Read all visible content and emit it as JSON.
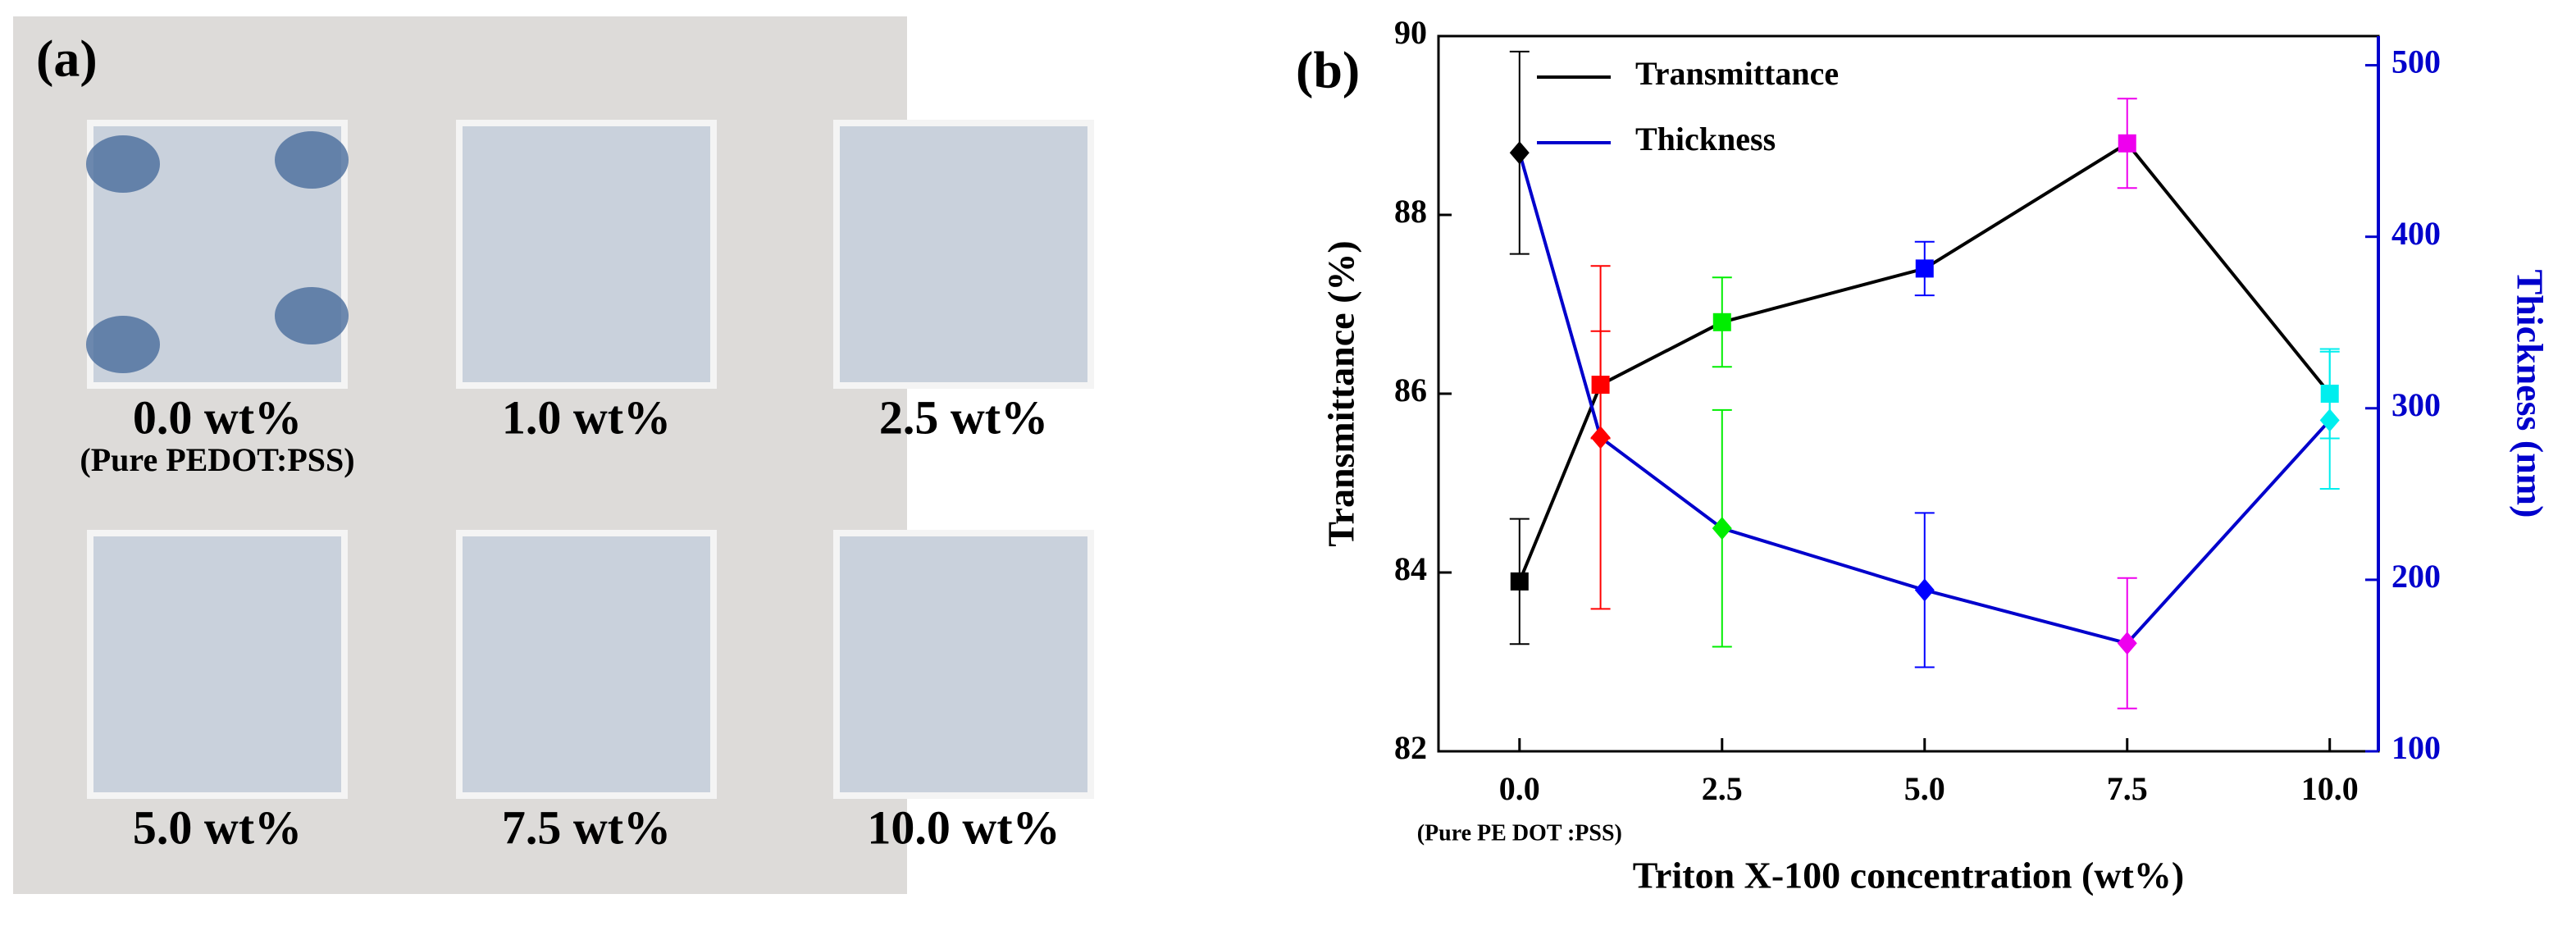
{
  "panel_a": {
    "label": "(a)",
    "samples": [
      "0.0 wt%",
      "1.0 wt%",
      "2.5 wt%",
      "5.0 wt%",
      "7.5 wt%",
      "10.0 wt%"
    ],
    "note": "(Pure PEDOT:PSS)"
  },
  "chart_data": {
    "type": "line",
    "panel_label": "(b)",
    "x_label": "Triton X-100 concentration (wt%)",
    "y_label": "Transmittance (%)",
    "y2_label": "Thickness (nm)",
    "annotation": "(Pure PE DOT :PSS)",
    "x": [
      0,
      1,
      2.5,
      5,
      7.5,
      10
    ],
    "xlim": [
      -1,
      10.6
    ],
    "xticks": [
      {
        "value": 0,
        "label": "0.0"
      },
      {
        "value": 2.5,
        "label": "2.5"
      },
      {
        "value": 5,
        "label": "5.0"
      },
      {
        "value": 7.5,
        "label": "7.5"
      },
      {
        "value": 10,
        "label": "10.0"
      }
    ],
    "ylim": [
      82,
      90
    ],
    "yticks": [
      82,
      84,
      86,
      88,
      90
    ],
    "y2lim": [
      100,
      517
    ],
    "y2ticks": [
      100,
      200,
      300,
      400,
      500
    ],
    "point_colors": [
      "#000000",
      "#ff0000",
      "#00ee00",
      "#0000ff",
      "#ee00ee",
      "#00eeee"
    ],
    "legend": "upper left",
    "series": [
      {
        "name": "Transmittance",
        "color": "#000000",
        "marker": "square",
        "axis": "y",
        "values": [
          83.9,
          86.1,
          86.8,
          87.4,
          88.8,
          86.0
        ],
        "errors": [
          0.7,
          0.6,
          0.5,
          0.3,
          0.5,
          0.5
        ]
      },
      {
        "name": "Thickness",
        "color": "#0000cc",
        "marker": "diamond",
        "axis": "y2",
        "values": [
          449,
          283,
          230,
          194,
          163,
          293
        ],
        "errors": [
          59,
          100,
          69,
          45,
          38,
          40
        ]
      }
    ]
  }
}
